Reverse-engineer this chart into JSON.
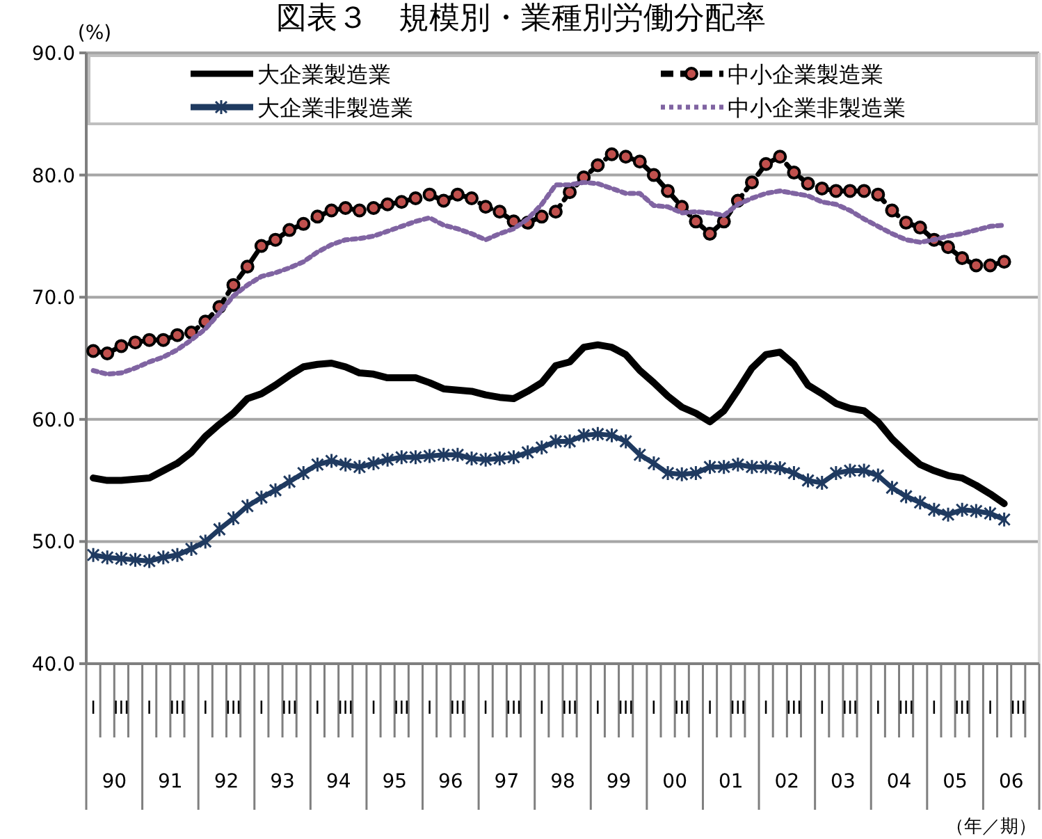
{
  "chart_data": {
    "type": "line",
    "title": "図表３　規模別・業種別労働分配率",
    "ylabel": "(%)",
    "categories": [
      "I",
      null,
      "III",
      null,
      "I",
      null,
      "III",
      null,
      "I",
      null,
      "III",
      null,
      "I",
      null,
      "III",
      null,
      "I",
      null,
      "III",
      null,
      "I",
      null,
      "III",
      null,
      "I",
      null,
      "III",
      null,
      "I",
      null,
      "III",
      null,
      "I",
      null,
      "III",
      null,
      "I",
      null,
      "III",
      null,
      "I",
      null,
      "III",
      null,
      "I",
      null,
      "III",
      null,
      "I",
      null,
      "III",
      null,
      "I",
      null,
      "III",
      null,
      "I",
      null,
      "III",
      null,
      "I",
      null,
      "III",
      null,
      "I",
      null,
      "III",
      null
    ],
    "annotations": [
      "90",
      "91",
      "92",
      "93",
      "94",
      "95",
      "96",
      "97",
      "98",
      "99",
      "00",
      "01",
      "02",
      "03",
      "04",
      "05",
      "06",
      "（年／期）"
    ],
    "ylim": [
      40,
      90
    ],
    "yticks": [
      {
        "value": 40,
        "label": "40.0"
      },
      {
        "value": 50,
        "label": "50.0"
      },
      {
        "value": 60,
        "label": "60.0"
      },
      {
        "value": 70,
        "label": "70.0"
      },
      {
        "value": 80,
        "label": "80.0"
      },
      {
        "value": 90,
        "label": "90.0"
      }
    ],
    "grid": "y",
    "legend": "top",
    "series": [
      {
        "name": "大企業製造業",
        "color": "#000000",
        "marker": "none",
        "line_style": "solid",
        "values": [
          55.2,
          55.0,
          55.0,
          55.1,
          55.2,
          55.8,
          56.4,
          57.3,
          58.6,
          59.6,
          60.5,
          61.7,
          62.1,
          62.8,
          63.6,
          64.3,
          64.5,
          64.6,
          64.3,
          63.8,
          63.7,
          63.4,
          63.4,
          63.4,
          63.0,
          62.5,
          62.4,
          62.3,
          62.0,
          61.8,
          61.7,
          62.3,
          63.0,
          64.4,
          64.7,
          65.9,
          66.1,
          65.9,
          65.3,
          64.0,
          63.0,
          61.9,
          61.0,
          60.5,
          59.8,
          60.7,
          62.4,
          64.2,
          65.3,
          65.5,
          64.5,
          62.8,
          62.1,
          61.3,
          60.9,
          60.7,
          59.8,
          58.4,
          57.3,
          56.3,
          55.8,
          55.4,
          55.2,
          54.6,
          53.9,
          53.1,
          null,
          null
        ]
      },
      {
        "name": "中小企業製造業",
        "color": "#c0504d",
        "marker": "circle",
        "line_style": "dashed",
        "values": [
          65.6,
          65.4,
          66.0,
          66.3,
          66.5,
          66.5,
          66.9,
          67.1,
          68.0,
          69.2,
          71.0,
          72.5,
          74.2,
          74.7,
          75.5,
          76.0,
          76.6,
          77.1,
          77.3,
          77.1,
          77.3,
          77.6,
          77.8,
          78.1,
          78.4,
          77.9,
          78.4,
          78.1,
          77.4,
          77.0,
          76.2,
          76.1,
          76.6,
          77.0,
          78.6,
          79.8,
          80.8,
          81.7,
          81.5,
          81.1,
          80.0,
          78.7,
          77.4,
          76.2,
          75.2,
          76.2,
          77.9,
          79.4,
          80.9,
          81.5,
          80.2,
          79.3,
          78.9,
          78.7,
          78.7,
          78.7,
          78.4,
          77.1,
          76.1,
          75.7,
          74.7,
          74.1,
          73.2,
          72.6,
          72.6,
          72.9,
          null,
          null
        ]
      },
      {
        "name": "大企業非製造業",
        "color": "#1f3a60",
        "marker": "cross",
        "line_style": "solid",
        "values": [
          48.9,
          48.7,
          48.6,
          48.5,
          48.4,
          48.7,
          48.9,
          49.4,
          50.0,
          51.0,
          51.9,
          52.9,
          53.6,
          54.2,
          54.9,
          55.6,
          56.3,
          56.6,
          56.3,
          56.1,
          56.4,
          56.7,
          56.9,
          56.9,
          57.0,
          57.1,
          57.1,
          56.8,
          56.7,
          56.8,
          56.9,
          57.3,
          57.7,
          58.2,
          58.2,
          58.7,
          58.8,
          58.7,
          58.2,
          57.1,
          56.4,
          55.6,
          55.5,
          55.6,
          56.1,
          56.1,
          56.3,
          56.1,
          56.1,
          56.0,
          55.6,
          55.0,
          54.8,
          55.6,
          55.8,
          55.8,
          55.4,
          54.4,
          53.7,
          53.2,
          52.6,
          52.2,
          52.6,
          52.5,
          52.3,
          51.8,
          null,
          null
        ]
      },
      {
        "name": "中小企業非製造業",
        "color": "#8064a2",
        "marker": "none",
        "line_style": "dotted",
        "values": [
          64.0,
          63.7,
          63.8,
          64.2,
          64.7,
          65.1,
          65.7,
          66.5,
          67.4,
          68.7,
          70.1,
          71.0,
          71.7,
          72.0,
          72.4,
          72.9,
          73.7,
          74.3,
          74.7,
          74.8,
          75.0,
          75.4,
          75.8,
          76.2,
          76.5,
          75.9,
          75.6,
          75.2,
          74.7,
          75.2,
          75.6,
          76.4,
          77.6,
          79.2,
          79.2,
          79.4,
          79.3,
          78.9,
          78.5,
          78.5,
          77.5,
          77.4,
          76.9,
          77.0,
          76.9,
          76.7,
          77.6,
          78.1,
          78.5,
          78.7,
          78.5,
          78.3,
          77.8,
          77.6,
          77.1,
          76.4,
          75.8,
          75.2,
          74.7,
          74.5,
          74.7,
          75.0,
          75.2,
          75.5,
          75.8,
          75.9,
          null,
          null
        ]
      }
    ]
  }
}
